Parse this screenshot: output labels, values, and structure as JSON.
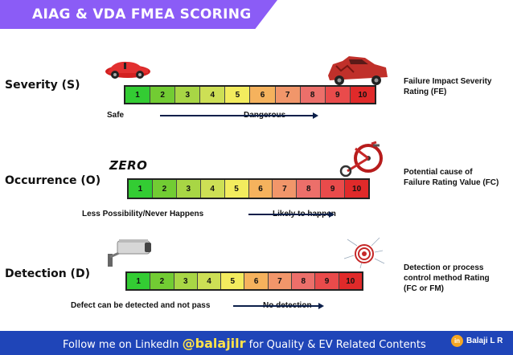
{
  "title": "AIAG & VDA FMEA SCORING",
  "scale_numbers": [
    "1",
    "2",
    "3",
    "4",
    "5",
    "6",
    "7",
    "8",
    "9",
    "10"
  ],
  "scale_colors": [
    "#33cc33",
    "#72cc33",
    "#a8d645",
    "#cddf55",
    "#f3ec5e",
    "#f5b25d",
    "#f1966a",
    "#ec6f6a",
    "#e94b4b",
    "#e02a2a"
  ],
  "severity": {
    "label": "Severity (S)",
    "side_line1": "Failure Impact Severity",
    "side_line2": "Rating (FE)",
    "low_note": "Safe",
    "high_note": "Dangerous"
  },
  "occurrence": {
    "label": "Occurrence (O)",
    "logo_text": "ZERO",
    "side_line1": "Potential cause of",
    "side_line2": "Failure Rating Value (FC)",
    "low_note": "Less Possibility/Never Happens",
    "high_note": "Likely to happen"
  },
  "detection": {
    "label": "Detection (D)",
    "side_line1": "Detection or process",
    "side_line2": "control method Rating",
    "side_line3": "(FC or FM)",
    "low_note": "Defect can be detected and not pass",
    "high_note": "No detection"
  },
  "footer": {
    "prefix": "Follow me on LinkedIn",
    "handle": "@balajilr",
    "suffix": "for Quality & EV Related Contents",
    "brand_icon": "in",
    "brand_name": "Balaji L R"
  },
  "icons": [
    "toy-car-icon",
    "crashed-car-icon",
    "tricycle-icon",
    "security-camera-icon",
    "target-icon"
  ]
}
